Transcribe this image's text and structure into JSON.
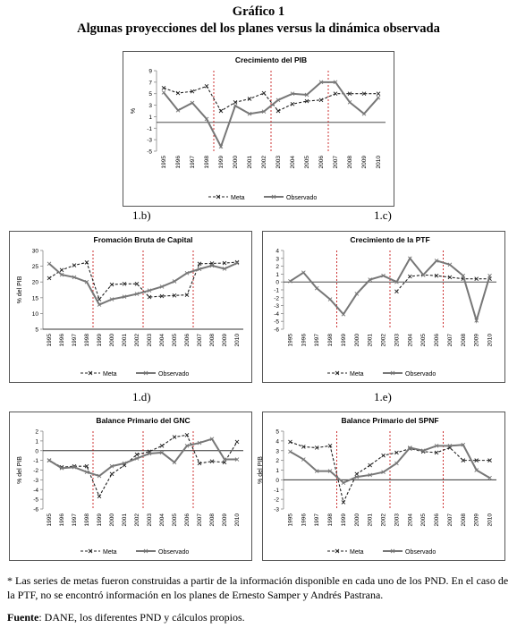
{
  "figure": {
    "title": "Gráfico 1",
    "subtitle": "Algunas proyecciones del los planes versus la dinámica observada"
  },
  "panel_labels": [
    "1.b)",
    "1.c)",
    "1.d)",
    "1.e)"
  ],
  "notes": {
    "footnote": "* Las series de metas fueron construidas a partir de la información disponible en cada uno de los PND. En el caso de la PTF, no se encontró información en los planes de Ernesto Samper y Andrés Pastrana.",
    "source_label": "Fuente",
    "source_text": ": DANE, los diferentes PND y cálculos propios."
  },
  "colors": {
    "meta": "#222222",
    "observado": "#777777",
    "plan_line": "#c00000"
  },
  "chart_data": [
    {
      "type": "line",
      "title": "Crecimiento del PIB",
      "ylabel": "%",
      "ylim": [
        -5,
        9
      ],
      "yticks": [
        -5,
        -3,
        -1,
        1,
        3,
        5,
        7,
        9
      ],
      "x": [
        "1995",
        "1996",
        "1997",
        "1998",
        "1999",
        "2000",
        "2001",
        "2002",
        "2003",
        "2004",
        "2005",
        "2006",
        "2007",
        "2008",
        "2009",
        "2010"
      ],
      "plan_markers": [
        "1998",
        "2002",
        "2006"
      ],
      "series": [
        {
          "name": "Meta",
          "values": [
            6.0,
            5.1,
            5.4,
            6.3,
            2.0,
            3.5,
            4.1,
            5.1,
            2.0,
            3.2,
            3.7,
            3.9,
            5.0,
            5.0,
            5.0,
            5.0
          ]
        },
        {
          "name": "Observado",
          "values": [
            5.2,
            2.1,
            3.4,
            0.6,
            -4.2,
            2.9,
            1.5,
            1.9,
            3.9,
            5.0,
            4.8,
            7.0,
            7.0,
            3.5,
            1.5,
            4.3
          ]
        }
      ]
    },
    {
      "type": "line",
      "title": "Fromación Bruta de Capital",
      "ylabel": "% del PIB",
      "ylim": [
        5,
        30
      ],
      "yticks": [
        5,
        10,
        15,
        20,
        25,
        30
      ],
      "x": [
        "1995",
        "1996",
        "1997",
        "1998",
        "1999",
        "2000",
        "2001",
        "2002",
        "2003",
        "2004",
        "2005",
        "2006",
        "2007",
        "2008",
        "2009",
        "2010"
      ],
      "plan_markers": [
        "1998",
        "2002",
        "2006"
      ],
      "series": [
        {
          "name": "Meta",
          "values": [
            21.2,
            23.8,
            25.3,
            26.2,
            14.5,
            19.2,
            19.4,
            19.4,
            15.2,
            15.5,
            15.7,
            15.9,
            25.8,
            25.9,
            26.0,
            26.3
          ]
        },
        {
          "name": "Observado",
          "values": [
            25.8,
            22.3,
            21.5,
            20.0,
            12.8,
            14.5,
            15.3,
            16.2,
            17.3,
            18.5,
            20.2,
            22.8,
            24.1,
            25.2,
            24.2,
            26.0
          ]
        }
      ]
    },
    {
      "type": "line",
      "title": "Crecimiento de la PTF",
      "ylabel": "",
      "ylim": [
        -6,
        4
      ],
      "yticks": [
        -6,
        -5,
        -4,
        -3,
        -2,
        -1,
        0,
        1,
        2,
        3,
        4
      ],
      "x": [
        "1995",
        "1996",
        "1997",
        "1998",
        "1999",
        "2000",
        "2001",
        "2002",
        "2003",
        "2004",
        "2005",
        "2006",
        "2007",
        "2008",
        "2009",
        "2010"
      ],
      "plan_markers": [
        "1998",
        "2002",
        "2006"
      ],
      "series": [
        {
          "name": "Meta",
          "values": [
            null,
            null,
            null,
            null,
            null,
            null,
            null,
            null,
            -1.2,
            0.7,
            0.9,
            0.8,
            0.6,
            0.4,
            0.4,
            0.4
          ]
        },
        {
          "name": "Observado",
          "values": [
            0.1,
            1.2,
            -0.8,
            -2.2,
            -4.1,
            -1.5,
            0.3,
            0.8,
            0.0,
            3.0,
            0.9,
            2.7,
            2.2,
            0.8,
            -4.9,
            0.8
          ]
        }
      ]
    },
    {
      "type": "line",
      "title": "Balance Primario del GNC",
      "ylabel": "% del PIB",
      "ylim": [
        -6,
        2
      ],
      "yticks": [
        -6,
        -5,
        -4,
        -3,
        -2,
        -1,
        0,
        1,
        2
      ],
      "x": [
        "1995",
        "1996",
        "1997",
        "1998",
        "1999",
        "2000",
        "2001",
        "2002",
        "2003",
        "2004",
        "2005",
        "2006",
        "2007",
        "2008",
        "2009",
        "2010"
      ],
      "plan_markers": [
        "1998",
        "2002",
        "2006"
      ],
      "series": [
        {
          "name": "Meta",
          "values": [
            -1.0,
            -1.7,
            -1.6,
            -1.6,
            -4.7,
            -2.4,
            -1.5,
            -0.4,
            -0.1,
            0.5,
            1.4,
            1.6,
            -1.3,
            -1.1,
            -1.2,
            0.9
          ]
        },
        {
          "name": "Observado",
          "values": [
            -1.0,
            -1.8,
            -1.7,
            -2.2,
            -2.6,
            -1.6,
            -1.3,
            -0.8,
            -0.3,
            -0.2,
            -1.2,
            0.5,
            0.8,
            1.2,
            -0.9,
            -0.9
          ]
        }
      ]
    },
    {
      "type": "line",
      "title": "Balance Primario del SPNF",
      "ylabel": "% del PIB",
      "ylim": [
        -3,
        5
      ],
      "yticks": [
        -3,
        -2,
        -1,
        0,
        1,
        2,
        3,
        4,
        5
      ],
      "x": [
        "1995",
        "1996",
        "1997",
        "1998",
        "1999",
        "2000",
        "2001",
        "2002",
        "2003",
        "2004",
        "2005",
        "2006",
        "2007",
        "2008",
        "2009",
        "2010"
      ],
      "plan_markers": [
        "1998",
        "2002",
        "2006"
      ],
      "series": [
        {
          "name": "Meta",
          "values": [
            3.9,
            3.4,
            3.3,
            3.5,
            -2.3,
            0.6,
            1.5,
            2.5,
            2.8,
            3.2,
            2.9,
            2.8,
            3.3,
            2.0,
            2.0,
            2.0
          ]
        },
        {
          "name": "Observado",
          "values": [
            2.9,
            2.1,
            0.9,
            0.9,
            -0.3,
            0.3,
            0.5,
            0.8,
            1.7,
            3.3,
            3.0,
            3.5,
            3.5,
            3.6,
            1.0,
            0.2
          ]
        }
      ]
    }
  ]
}
